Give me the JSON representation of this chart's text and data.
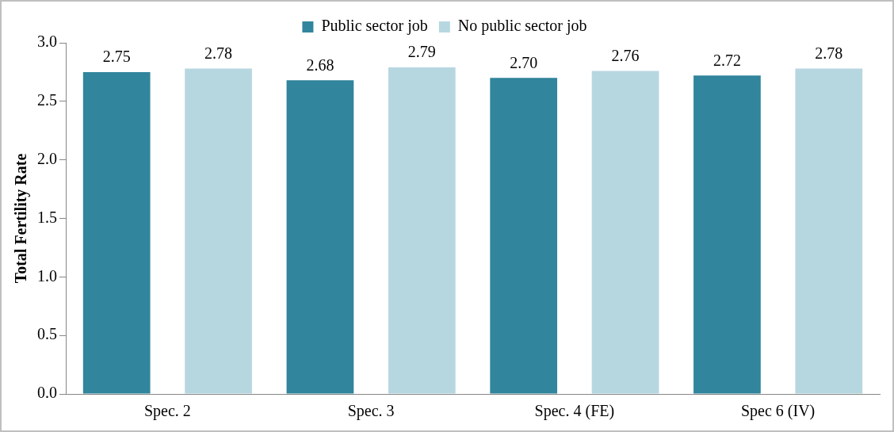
{
  "chart_data": {
    "type": "bar",
    "ylabel": "Total Fertility Rate",
    "categories": [
      "Spec. 2",
      "Spec. 3",
      "Spec. 4 (FE)",
      "Spec 6 (IV)"
    ],
    "series": [
      {
        "name": "Public sector job",
        "color": "#31859c",
        "values": [
          2.75,
          2.68,
          2.7,
          2.72
        ],
        "value_labels": [
          "2.75",
          "2.68",
          "2.70",
          "2.72"
        ]
      },
      {
        "name": "No public sector job",
        "color": "#b7d7e0",
        "values": [
          2.78,
          2.79,
          2.76,
          2.78
        ],
        "value_labels": [
          "2.78",
          "2.79",
          "2.76",
          "2.78"
        ]
      }
    ],
    "ylim": [
      0,
      3
    ],
    "yticks": [
      {
        "value": 0,
        "label": "0.0"
      },
      {
        "value": 0.5,
        "label": "0.5"
      },
      {
        "value": 1,
        "label": "1.0"
      },
      {
        "value": 1.5,
        "label": "1.5"
      },
      {
        "value": 2,
        "label": "2.0"
      },
      {
        "value": 2.5,
        "label": "2.5"
      },
      {
        "value": 3,
        "label": "3.0"
      }
    ],
    "grid": false,
    "legend": "top"
  }
}
